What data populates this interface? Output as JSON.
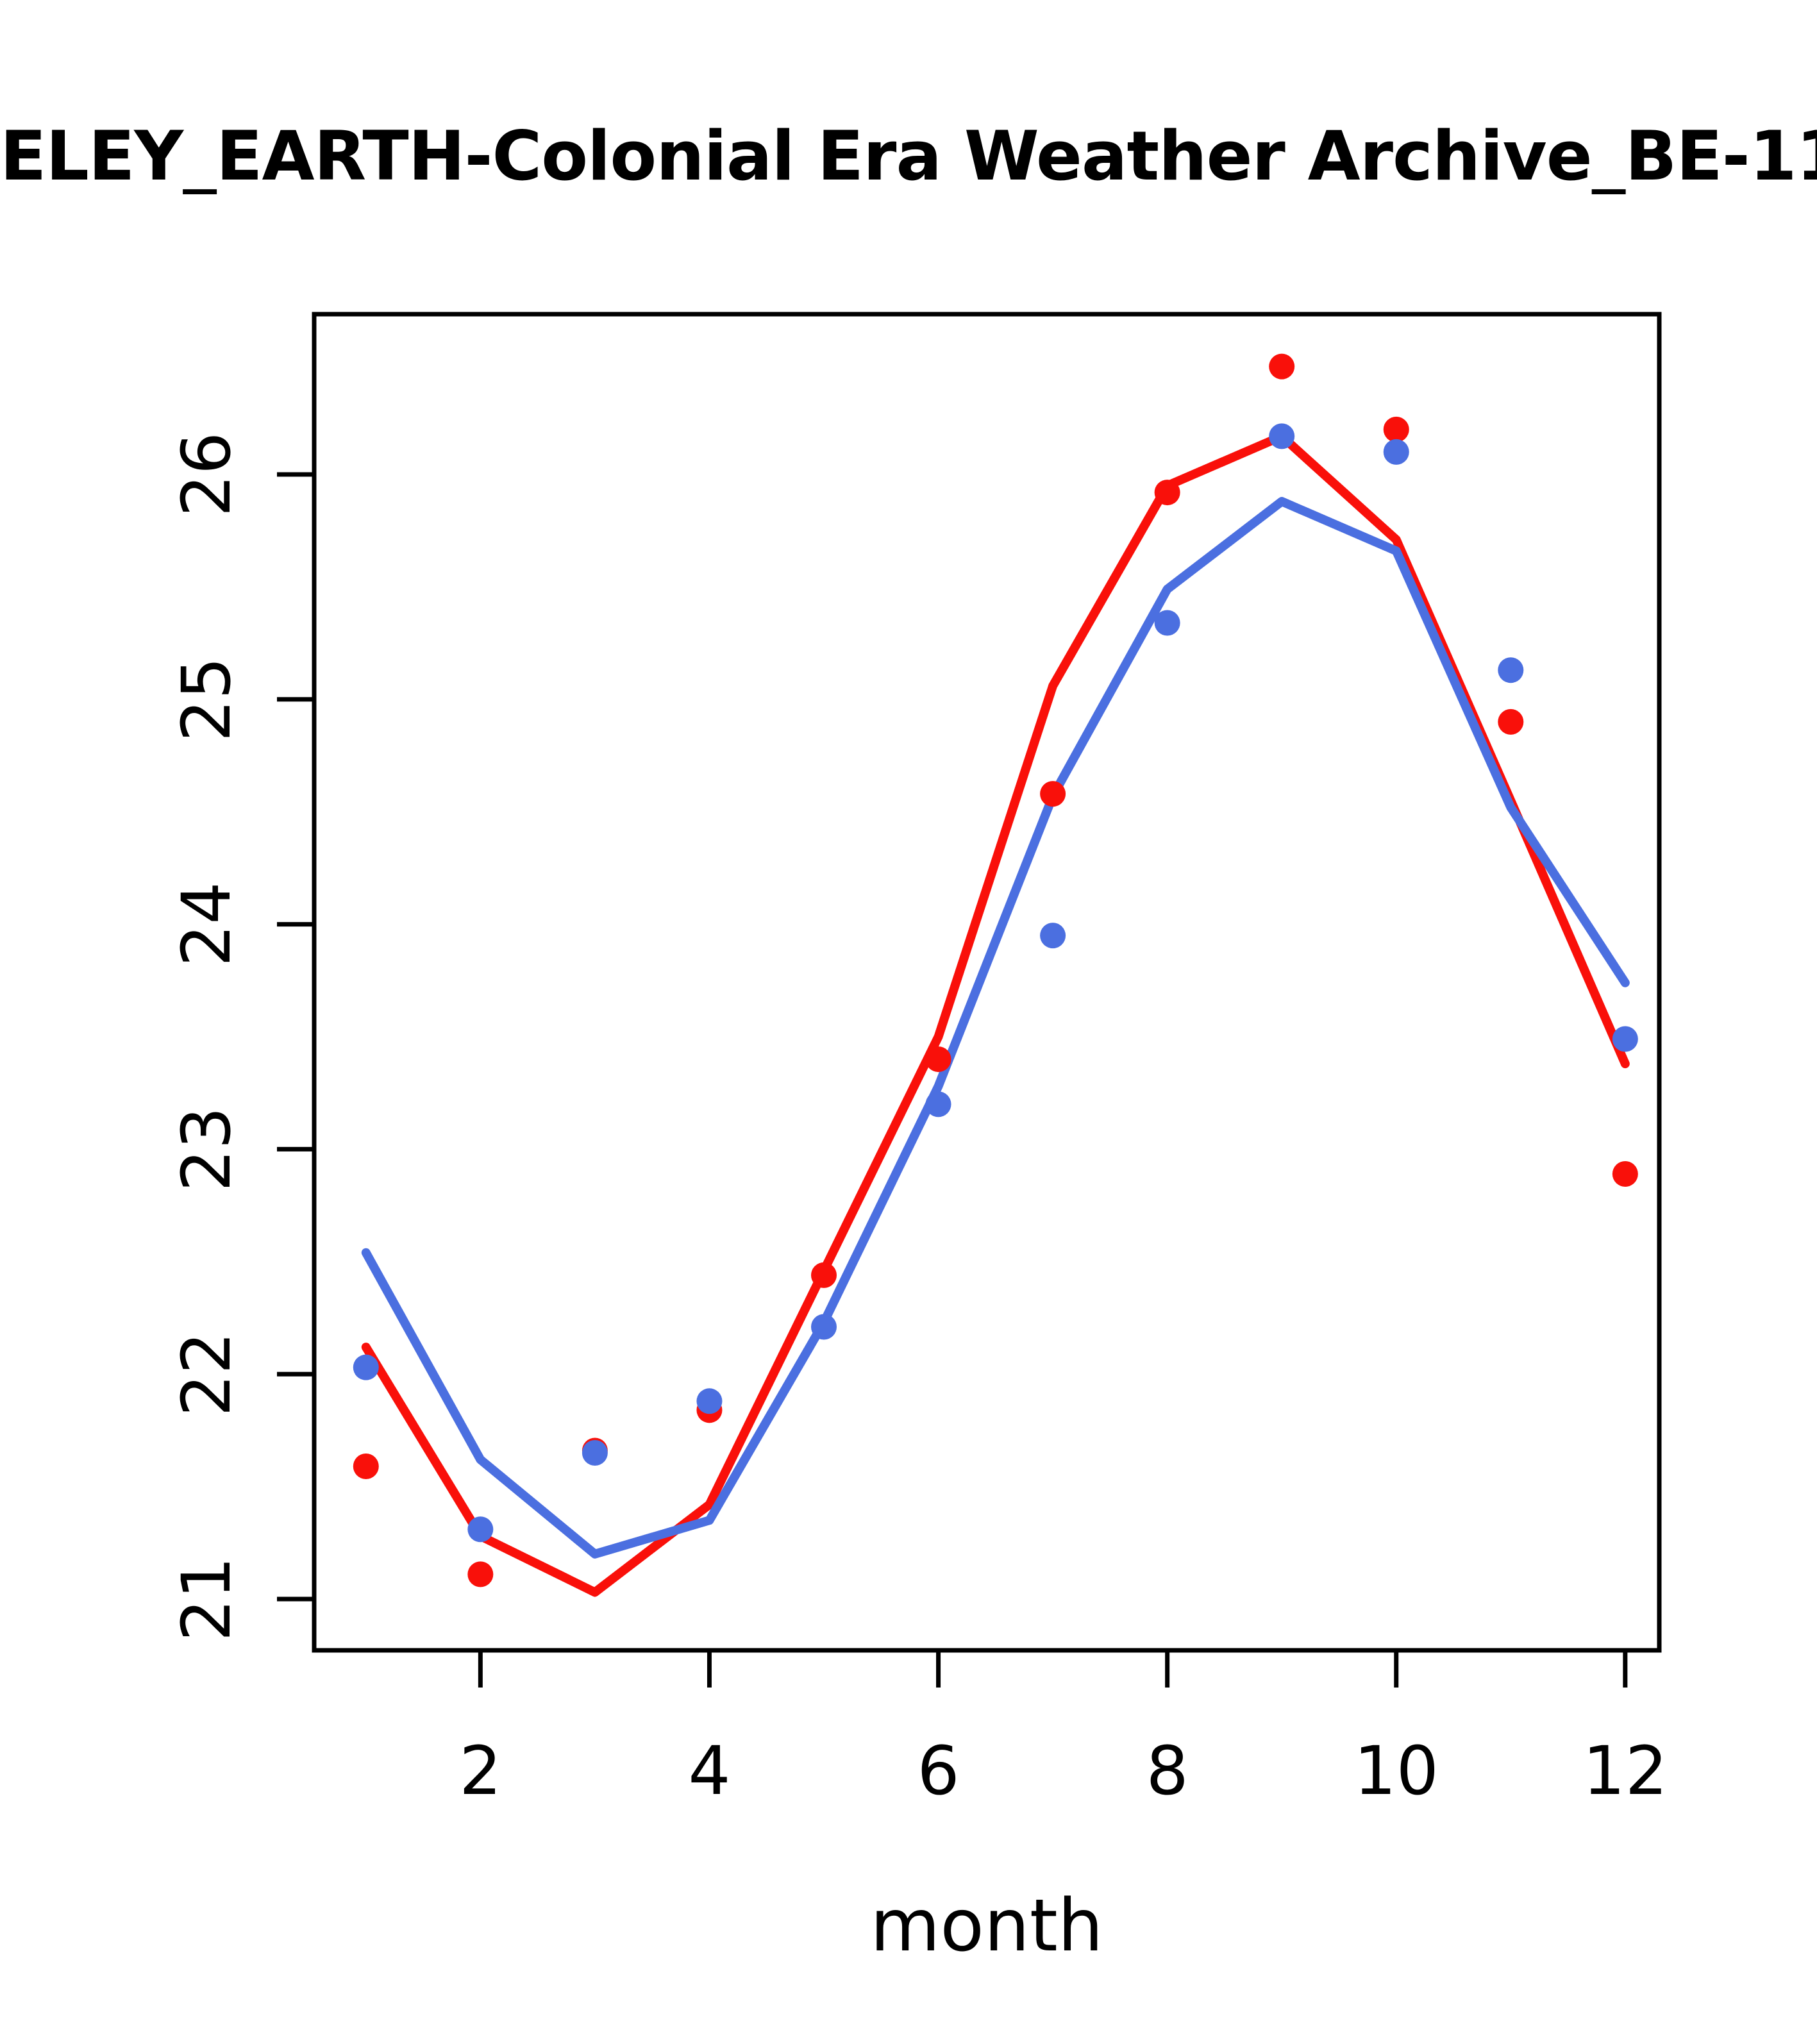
{
  "title": "ELEY_EARTH-Colonial Era Weather Archive_BE-11",
  "colors": {
    "red": "#f9100a",
    "blue": "#4b6fe0",
    "axis": "#000000",
    "background": "#ffffff"
  },
  "chart_data": {
    "type": "scatter",
    "title": "ELEY_EARTH-Colonial Era Weather Archive_BE-11",
    "xlabel": "month",
    "ylabel": "",
    "x": [
      1,
      2,
      3,
      4,
      5,
      6,
      7,
      8,
      9,
      10,
      11,
      12
    ],
    "x_ticks": [
      2,
      4,
      6,
      8,
      10,
      12
    ],
    "y_ticks": [
      21,
      22,
      23,
      24,
      25,
      26
    ],
    "xlim": [
      0.55,
      12.45
    ],
    "ylim": [
      20.77,
      26.72
    ],
    "grid": false,
    "legend_position": "none",
    "series": [
      {
        "name": "red-observations",
        "style": "points",
        "color_key": "red",
        "values": [
          21.59,
          21.11,
          21.66,
          21.84,
          22.44,
          23.4,
          24.58,
          25.92,
          26.48,
          26.2,
          24.9,
          22.89
        ]
      },
      {
        "name": "blue-observations",
        "style": "points",
        "color_key": "blue",
        "values": [
          22.03,
          21.31,
          21.65,
          21.88,
          22.21,
          23.2,
          23.95,
          25.34,
          26.17,
          26.1,
          25.13,
          23.49
        ]
      },
      {
        "name": "red-model-line",
        "style": "line",
        "color_key": "red",
        "values": [
          22.12,
          21.28,
          21.03,
          21.42,
          22.46,
          23.5,
          25.06,
          25.95,
          26.17,
          25.71,
          24.55,
          23.38
        ]
      },
      {
        "name": "blue-model-line",
        "style": "line",
        "color_key": "blue",
        "values": [
          22.54,
          21.62,
          21.2,
          21.35,
          22.23,
          23.28,
          24.57,
          25.49,
          25.88,
          25.66,
          24.52,
          23.74
        ]
      }
    ]
  }
}
